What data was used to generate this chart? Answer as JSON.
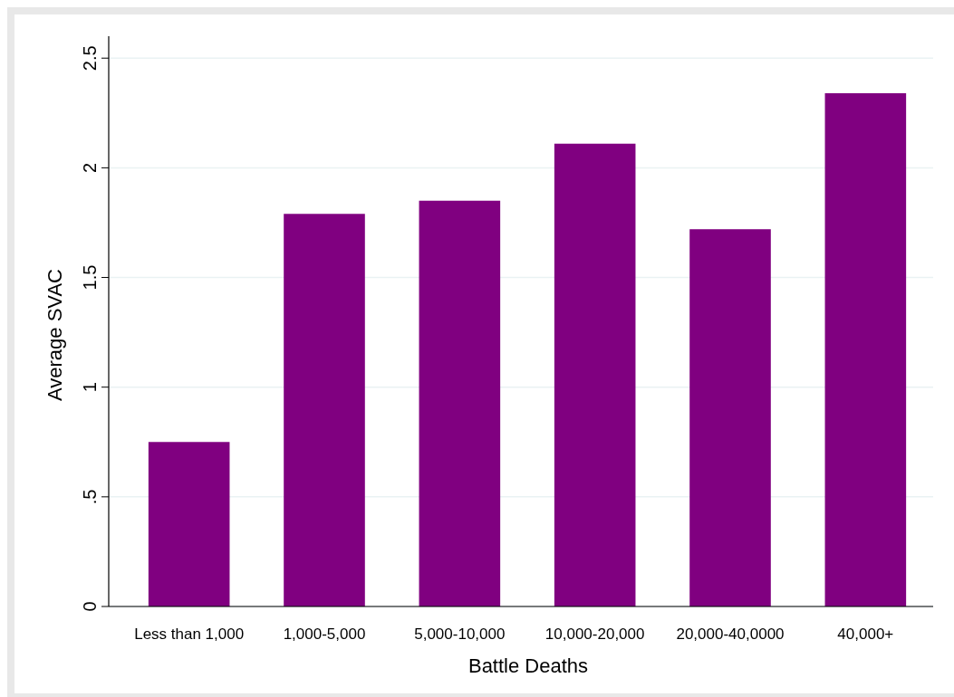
{
  "chart_data": {
    "type": "bar",
    "xlabel": "Battle Deaths",
    "ylabel": "Average SVAC",
    "categories": [
      "Less than 1,000",
      "1,000-5,000",
      "5,000-10,000",
      "10,000-20,000",
      "20,000-40,0000",
      "40,000+"
    ],
    "values": [
      0.75,
      1.79,
      1.85,
      2.11,
      1.72,
      2.34
    ],
    "color": "#800080",
    "ylim": [
      0,
      2.6
    ],
    "yticks": [
      0,
      {
        "value": 0.5,
        "label": ".5"
      },
      1,
      1.5,
      2,
      2.5
    ],
    "grid": "y"
  }
}
